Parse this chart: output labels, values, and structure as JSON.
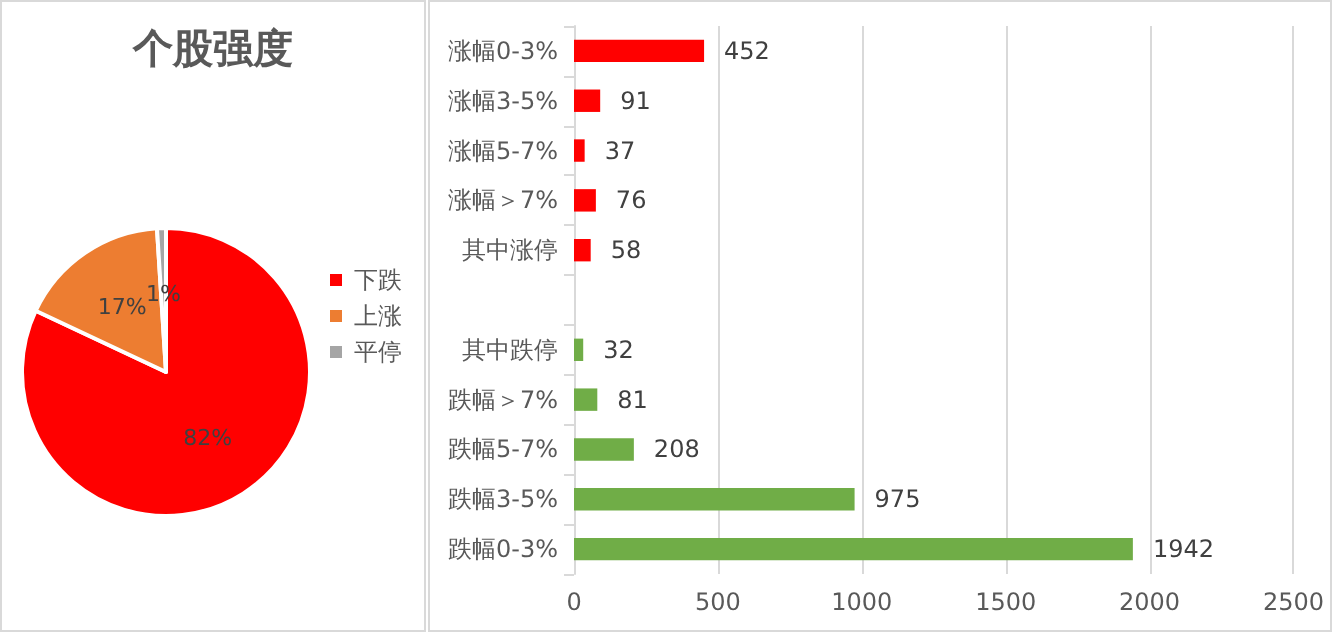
{
  "chart_data": [
    {
      "type": "pie",
      "title": "个股强度",
      "categories": [
        "下跌",
        "上涨",
        "平停"
      ],
      "values": [
        82,
        17,
        1
      ],
      "colors": [
        "#ff0000",
        "#ed7d31",
        "#a5a5a5"
      ],
      "value_labels": [
        "82%",
        "17%",
        "1%"
      ],
      "legend": "right"
    },
    {
      "type": "bar",
      "orientation": "horizontal",
      "categories": [
        "涨幅0-3%",
        "涨幅3-5%",
        "涨幅5-7%",
        "涨幅＞7%",
        "其中涨停",
        null,
        "其中跌停",
        "跌幅＞7%",
        "跌幅5-7%",
        "跌幅3-5%",
        "跌幅0-3%"
      ],
      "values": [
        452,
        91,
        37,
        76,
        58,
        null,
        32,
        81,
        208,
        975,
        1942
      ],
      "colors": [
        "#ff0000",
        "#ff0000",
        "#ff0000",
        "#ff0000",
        "#ff0000",
        null,
        "#70ad47",
        "#70ad47",
        "#70ad47",
        "#70ad47",
        "#70ad47"
      ],
      "xlim": [
        0,
        2500
      ],
      "xticks": [
        0,
        500,
        1000,
        1500,
        2000,
        2500
      ],
      "grid": "x",
      "data_labels": true
    }
  ]
}
